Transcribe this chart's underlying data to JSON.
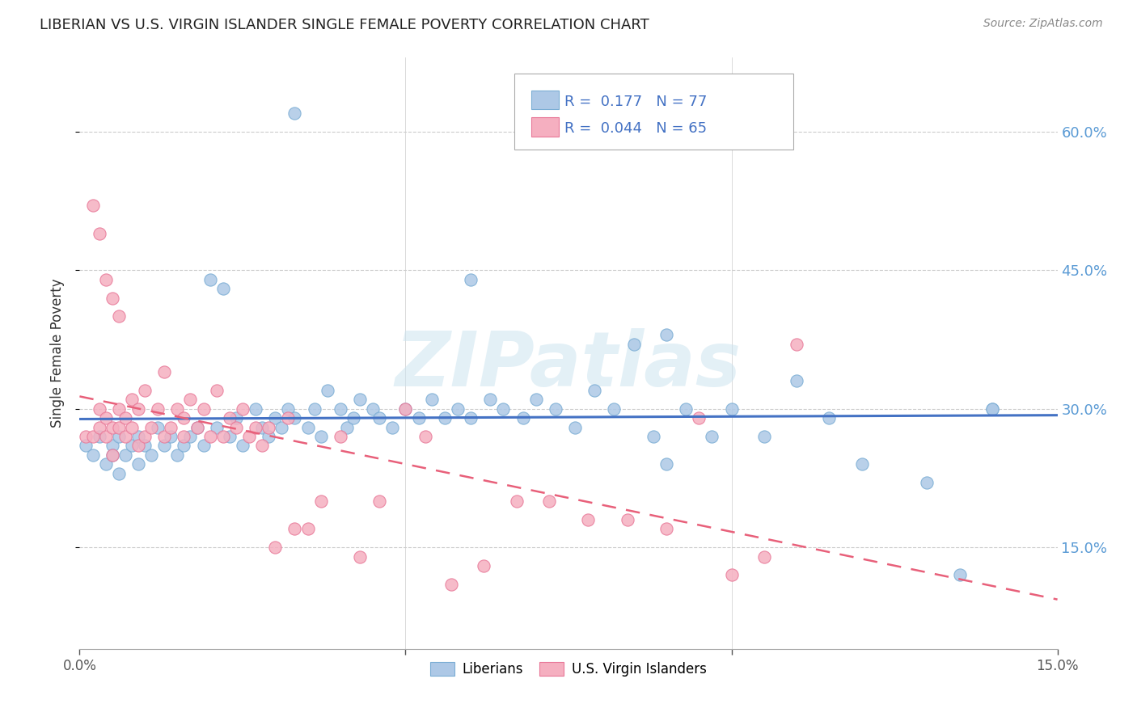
{
  "title": "LIBERIAN VS U.S. VIRGIN ISLANDER SINGLE FEMALE POVERTY CORRELATION CHART",
  "source": "Source: ZipAtlas.com",
  "ylabel": "Single Female Poverty",
  "yticks_labels": [
    "60.0%",
    "45.0%",
    "30.0%",
    "15.0%"
  ],
  "ytick_vals": [
    0.6,
    0.45,
    0.3,
    0.15
  ],
  "xmin": 0.0,
  "xmax": 0.15,
  "ymin": 0.04,
  "ymax": 0.68,
  "liberian_color": "#adc8e6",
  "liberian_edge": "#7aadd4",
  "virgin_color": "#f5afc0",
  "virgin_edge": "#e87898",
  "liberian_line_color": "#4472c4",
  "virgin_line_color": "#e8607a",
  "R_liberian": "0.177",
  "N_liberian": "77",
  "R_virgin": "0.044",
  "N_virgin": "65",
  "watermark": "ZIPatlas",
  "lib_x": [
    0.001,
    0.002,
    0.003,
    0.004,
    0.005,
    0.005,
    0.006,
    0.006,
    0.007,
    0.008,
    0.009,
    0.009,
    0.01,
    0.011,
    0.012,
    0.013,
    0.014,
    0.015,
    0.016,
    0.017,
    0.018,
    0.019,
    0.02,
    0.021,
    0.022,
    0.023,
    0.024,
    0.025,
    0.027,
    0.028,
    0.029,
    0.03,
    0.031,
    0.032,
    0.033,
    0.035,
    0.036,
    0.037,
    0.038,
    0.04,
    0.041,
    0.042,
    0.043,
    0.045,
    0.046,
    0.048,
    0.05,
    0.052,
    0.054,
    0.056,
    0.058,
    0.06,
    0.063,
    0.065,
    0.068,
    0.07,
    0.073,
    0.076,
    0.079,
    0.082,
    0.085,
    0.088,
    0.09,
    0.093,
    0.097,
    0.1,
    0.105,
    0.11,
    0.12,
    0.13,
    0.135,
    0.14,
    0.033,
    0.06,
    0.09,
    0.115,
    0.14
  ],
  "lib_y": [
    0.26,
    0.25,
    0.27,
    0.24,
    0.26,
    0.25,
    0.27,
    0.23,
    0.25,
    0.26,
    0.24,
    0.27,
    0.26,
    0.25,
    0.28,
    0.26,
    0.27,
    0.25,
    0.26,
    0.27,
    0.28,
    0.26,
    0.44,
    0.28,
    0.43,
    0.27,
    0.29,
    0.26,
    0.3,
    0.28,
    0.27,
    0.29,
    0.28,
    0.3,
    0.29,
    0.28,
    0.3,
    0.27,
    0.32,
    0.3,
    0.28,
    0.29,
    0.31,
    0.3,
    0.29,
    0.28,
    0.3,
    0.29,
    0.31,
    0.29,
    0.3,
    0.29,
    0.31,
    0.3,
    0.29,
    0.31,
    0.3,
    0.28,
    0.32,
    0.3,
    0.37,
    0.27,
    0.24,
    0.3,
    0.27,
    0.3,
    0.27,
    0.33,
    0.24,
    0.22,
    0.12,
    0.3,
    0.62,
    0.44,
    0.38,
    0.29,
    0.3
  ],
  "vir_x": [
    0.001,
    0.002,
    0.003,
    0.003,
    0.004,
    0.004,
    0.005,
    0.005,
    0.006,
    0.006,
    0.007,
    0.007,
    0.008,
    0.008,
    0.009,
    0.009,
    0.01,
    0.01,
    0.011,
    0.012,
    0.013,
    0.013,
    0.014,
    0.015,
    0.016,
    0.016,
    0.017,
    0.018,
    0.019,
    0.02,
    0.021,
    0.022,
    0.023,
    0.024,
    0.025,
    0.026,
    0.027,
    0.028,
    0.029,
    0.03,
    0.032,
    0.033,
    0.035,
    0.037,
    0.04,
    0.043,
    0.046,
    0.05,
    0.053,
    0.057,
    0.062,
    0.067,
    0.072,
    0.078,
    0.084,
    0.09,
    0.095,
    0.1,
    0.105,
    0.11,
    0.002,
    0.003,
    0.004,
    0.005,
    0.006
  ],
  "vir_y": [
    0.27,
    0.27,
    0.28,
    0.3,
    0.27,
    0.29,
    0.28,
    0.25,
    0.3,
    0.28,
    0.27,
    0.29,
    0.31,
    0.28,
    0.3,
    0.26,
    0.27,
    0.32,
    0.28,
    0.3,
    0.27,
    0.34,
    0.28,
    0.3,
    0.27,
    0.29,
    0.31,
    0.28,
    0.3,
    0.27,
    0.32,
    0.27,
    0.29,
    0.28,
    0.3,
    0.27,
    0.28,
    0.26,
    0.28,
    0.15,
    0.29,
    0.17,
    0.17,
    0.2,
    0.27,
    0.14,
    0.2,
    0.3,
    0.27,
    0.11,
    0.13,
    0.2,
    0.2,
    0.18,
    0.18,
    0.17,
    0.29,
    0.12,
    0.14,
    0.37,
    0.52,
    0.49,
    0.44,
    0.42,
    0.4
  ]
}
